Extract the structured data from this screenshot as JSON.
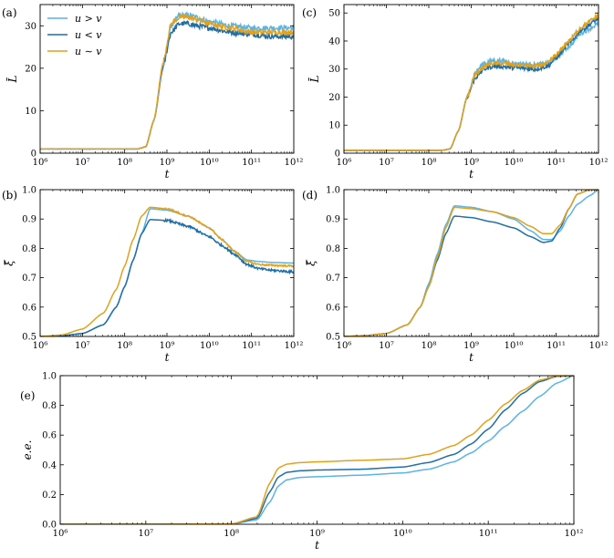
{
  "colors": {
    "u_gt_v": "#5ab4e6",
    "u_lt_v": "#1f6fa8",
    "u_sim_v": "#e3a11a"
  },
  "legend": [
    {
      "label": "u > v",
      "color_key": "u_gt_v"
    },
    {
      "label": "u < v",
      "color_key": "u_lt_v"
    },
    {
      "label": "u ∼ v",
      "color_key": "u_sim_v"
    }
  ],
  "chart_data": [
    {
      "id": "a",
      "panel_label": "(a)",
      "type": "line",
      "xlabel": "t",
      "ylabel": "L̄",
      "xscale": "log",
      "xlim": [
        6,
        12
      ],
      "ylim": [
        0,
        35
      ],
      "xticks": [
        {
          "v": 6,
          "label": "10⁶"
        },
        {
          "v": 7,
          "label": "10⁷"
        },
        {
          "v": 8,
          "label": "10⁸"
        },
        {
          "v": 9,
          "label": "10⁹"
        },
        {
          "v": 10,
          "label": "10¹⁰"
        },
        {
          "v": 11,
          "label": "10¹¹"
        },
        {
          "v": 12,
          "label": "10¹²"
        }
      ],
      "yticks": [
        {
          "v": 0,
          "label": "0"
        },
        {
          "v": 10,
          "label": "10"
        },
        {
          "v": 20,
          "label": "20"
        },
        {
          "v": 30,
          "label": "30"
        }
      ],
      "legend": true,
      "series": [
        {
          "name": "u > v",
          "color_key": "u_gt_v",
          "noise": 0.6,
          "x": [
            6,
            8.3,
            8.5,
            8.7,
            8.9,
            9.1,
            9.3,
            9.5,
            9.7,
            10,
            10.5,
            11,
            11.5,
            12
          ],
          "y": [
            1,
            1,
            1.5,
            8,
            20,
            30,
            32.5,
            32.5,
            32,
            31,
            30,
            29.5,
            29.5,
            29.5
          ]
        },
        {
          "name": "u < v",
          "color_key": "u_lt_v",
          "noise": 0.6,
          "x": [
            6,
            8.3,
            8.5,
            8.7,
            8.9,
            9.1,
            9.3,
            9.5,
            9.7,
            10,
            10.5,
            11,
            11.5,
            12
          ],
          "y": [
            1,
            1,
            1.5,
            8,
            20,
            28.5,
            30.5,
            30.5,
            30,
            29.5,
            28.5,
            28,
            27.5,
            27.5
          ]
        },
        {
          "name": "u ∼ v",
          "color_key": "u_sim_v",
          "noise": 0.6,
          "x": [
            6,
            8.3,
            8.5,
            8.7,
            8.9,
            9.1,
            9.3,
            9.5,
            9.7,
            10,
            10.5,
            11,
            11.5,
            12
          ],
          "y": [
            1,
            1,
            1.5,
            8,
            21,
            30.5,
            32,
            32,
            31.5,
            30.5,
            29.5,
            28.5,
            28.5,
            28.5
          ]
        }
      ]
    },
    {
      "id": "c",
      "panel_label": "(c)",
      "type": "line",
      "xlabel": "t",
      "ylabel": "L̄",
      "xscale": "log",
      "xlim": [
        6,
        12
      ],
      "ylim": [
        0,
        53
      ],
      "xticks": [
        {
          "v": 6,
          "label": "10⁶"
        },
        {
          "v": 7,
          "label": "10⁷"
        },
        {
          "v": 8,
          "label": "10⁸"
        },
        {
          "v": 9,
          "label": "10⁹"
        },
        {
          "v": 10,
          "label": "10¹⁰"
        },
        {
          "v": 11,
          "label": "10¹¹"
        },
        {
          "v": 12,
          "label": "10¹²"
        }
      ],
      "yticks": [
        {
          "v": 0,
          "label": "0"
        },
        {
          "v": 10,
          "label": "10"
        },
        {
          "v": 20,
          "label": "20"
        },
        {
          "v": 30,
          "label": "30"
        },
        {
          "v": 40,
          "label": "40"
        },
        {
          "v": 50,
          "label": "50"
        }
      ],
      "legend": false,
      "series": [
        {
          "name": "u > v",
          "color_key": "u_gt_v",
          "noise": 0.8,
          "x": [
            6,
            8.3,
            8.5,
            8.7,
            8.9,
            9.1,
            9.3,
            9.5,
            9.7,
            10,
            10.5,
            10.8,
            11,
            11.3,
            11.6,
            12
          ],
          "y": [
            1,
            1,
            1.5,
            8,
            20,
            29,
            32,
            33,
            33,
            32,
            31.5,
            32,
            34,
            38,
            43,
            46
          ]
        },
        {
          "name": "u < v",
          "color_key": "u_lt_v",
          "noise": 0.8,
          "x": [
            6,
            8.3,
            8.5,
            8.7,
            8.9,
            9.1,
            9.3,
            9.5,
            9.7,
            10,
            10.5,
            10.8,
            11,
            11.3,
            11.6,
            12
          ],
          "y": [
            1,
            1,
            1.5,
            8,
            20,
            27,
            30,
            31,
            31,
            30.5,
            30,
            31,
            34,
            39,
            44,
            48
          ]
        },
        {
          "name": "u ∼ v",
          "color_key": "u_sim_v",
          "noise": 0.8,
          "x": [
            6,
            8.3,
            8.5,
            8.7,
            8.9,
            9.1,
            9.3,
            9.5,
            9.7,
            10,
            10.5,
            10.8,
            11,
            11.3,
            11.6,
            12
          ],
          "y": [
            1,
            1,
            1.5,
            8,
            20,
            28,
            31,
            32,
            32,
            31.5,
            31,
            32,
            35,
            40,
            45,
            49
          ]
        }
      ]
    },
    {
      "id": "b",
      "panel_label": "(b)",
      "type": "line",
      "xlabel": "t",
      "ylabel": "ξ̄",
      "xscale": "log",
      "xlim": [
        6,
        12
      ],
      "ylim": [
        0.5,
        1.0
      ],
      "xticks": [
        {
          "v": 6,
          "label": "10⁶"
        },
        {
          "v": 7,
          "label": "10⁷"
        },
        {
          "v": 8,
          "label": "10⁸"
        },
        {
          "v": 9,
          "label": "10⁹"
        },
        {
          "v": 10,
          "label": "10¹⁰"
        },
        {
          "v": 11,
          "label": "10¹¹"
        },
        {
          "v": 12,
          "label": "10¹²"
        }
      ],
      "yticks": [
        {
          "v": 0.5,
          "label": "0.5"
        },
        {
          "v": 0.6,
          "label": "0.6"
        },
        {
          "v": 0.7,
          "label": "0.7"
        },
        {
          "v": 0.8,
          "label": "0.8"
        },
        {
          "v": 0.9,
          "label": "0.9"
        },
        {
          "v": 1.0,
          "label": "1.0"
        }
      ],
      "legend": false,
      "series": [
        {
          "name": "u > v",
          "color_key": "u_gt_v",
          "noise": 0.0,
          "x": [
            6,
            6.5,
            7,
            7.5,
            7.8,
            8,
            8.2,
            8.4,
            8.6,
            9,
            9.5,
            10,
            10.3,
            10.6,
            10.9,
            11.2,
            11.5,
            12
          ],
          "y": [
            0.5,
            0.502,
            0.51,
            0.54,
            0.6,
            0.67,
            0.76,
            0.85,
            0.935,
            0.93,
            0.91,
            0.87,
            0.83,
            0.79,
            0.76,
            0.755,
            0.752,
            0.75
          ]
        },
        {
          "name": "u < v",
          "color_key": "u_lt_v",
          "noise": 0.004,
          "x": [
            6,
            6.5,
            7,
            7.5,
            7.8,
            8,
            8.2,
            8.4,
            8.6,
            9,
            9.5,
            10,
            10.3,
            10.6,
            10.9,
            11.2,
            11.5,
            12
          ],
          "y": [
            0.5,
            0.502,
            0.51,
            0.54,
            0.6,
            0.67,
            0.76,
            0.85,
            0.898,
            0.895,
            0.875,
            0.84,
            0.81,
            0.78,
            0.745,
            0.73,
            0.725,
            0.72
          ]
        },
        {
          "name": "u ∼ v",
          "color_key": "u_sim_v",
          "noise": 0.003,
          "x": [
            6,
            6.5,
            7,
            7.5,
            7.8,
            8,
            8.2,
            8.4,
            8.6,
            9,
            9.5,
            10,
            10.3,
            10.6,
            10.9,
            11.2,
            11.5,
            12
          ],
          "y": [
            0.5,
            0.505,
            0.525,
            0.58,
            0.66,
            0.74,
            0.83,
            0.91,
            0.94,
            0.935,
            0.91,
            0.87,
            0.83,
            0.79,
            0.755,
            0.745,
            0.742,
            0.74
          ]
        }
      ]
    },
    {
      "id": "d",
      "panel_label": "(d)",
      "type": "line",
      "xlabel": "t",
      "ylabel": "ξ̄",
      "xscale": "log",
      "xlim": [
        6,
        12
      ],
      "ylim": [
        0.5,
        1.0
      ],
      "xticks": [
        {
          "v": 6,
          "label": "10⁶"
        },
        {
          "v": 7,
          "label": "10⁷"
        },
        {
          "v": 8,
          "label": "10⁸"
        },
        {
          "v": 9,
          "label": "10⁹"
        },
        {
          "v": 10,
          "label": "10¹⁰"
        },
        {
          "v": 11,
          "label": "10¹¹"
        },
        {
          "v": 12,
          "label": "10¹²"
        }
      ],
      "yticks": [
        {
          "v": 0.5,
          "label": "0.5"
        },
        {
          "v": 0.6,
          "label": "0.6"
        },
        {
          "v": 0.7,
          "label": "0.7"
        },
        {
          "v": 0.8,
          "label": "0.8"
        },
        {
          "v": 0.9,
          "label": "0.9"
        },
        {
          "v": 1.0,
          "label": "1.0"
        }
      ],
      "legend": false,
      "series": [
        {
          "name": "u > v",
          "color_key": "u_gt_v",
          "noise": 0.0,
          "x": [
            6,
            6.5,
            7,
            7.5,
            7.8,
            8,
            8.2,
            8.4,
            8.6,
            9,
            9.5,
            10,
            10.4,
            10.7,
            10.9,
            11.1,
            11.3,
            11.5,
            11.8,
            12
          ],
          "y": [
            0.5,
            0.503,
            0.51,
            0.54,
            0.6,
            0.68,
            0.78,
            0.88,
            0.945,
            0.94,
            0.925,
            0.9,
            0.86,
            0.83,
            0.83,
            0.86,
            0.91,
            0.95,
            0.98,
            1.0
          ]
        },
        {
          "name": "u < v",
          "color_key": "u_lt_v",
          "noise": 0.0,
          "x": [
            6,
            6.5,
            7,
            7.5,
            7.8,
            8,
            8.2,
            8.4,
            8.6,
            9,
            9.5,
            10,
            10.4,
            10.7,
            10.9,
            11.1,
            11.3,
            11.5,
            11.8,
            12
          ],
          "y": [
            0.5,
            0.503,
            0.51,
            0.54,
            0.6,
            0.67,
            0.76,
            0.85,
            0.91,
            0.905,
            0.89,
            0.87,
            0.84,
            0.82,
            0.825,
            0.87,
            0.935,
            0.985,
            1.0,
            1.0
          ]
        },
        {
          "name": "u ∼ v",
          "color_key": "u_sim_v",
          "noise": 0.0,
          "x": [
            6,
            6.5,
            7,
            7.5,
            7.8,
            8,
            8.2,
            8.4,
            8.6,
            9,
            9.5,
            10,
            10.4,
            10.7,
            10.9,
            11.1,
            11.3,
            11.5,
            11.8,
            12
          ],
          "y": [
            0.5,
            0.503,
            0.51,
            0.54,
            0.6,
            0.67,
            0.77,
            0.87,
            0.94,
            0.935,
            0.925,
            0.905,
            0.875,
            0.85,
            0.85,
            0.88,
            0.935,
            0.985,
            1.0,
            1.0
          ]
        }
      ]
    },
    {
      "id": "e",
      "panel_label": "(e)",
      "type": "line",
      "xlabel": "t",
      "ylabel": "e.e.",
      "xscale": "log",
      "xlim": [
        6,
        12
      ],
      "ylim": [
        0.0,
        1.0
      ],
      "xticks": [
        {
          "v": 6,
          "label": "10⁶"
        },
        {
          "v": 7,
          "label": "10⁷"
        },
        {
          "v": 8,
          "label": "10⁸"
        },
        {
          "v": 9,
          "label": "10⁹"
        },
        {
          "v": 10,
          "label": "10¹⁰"
        },
        {
          "v": 11,
          "label": "10¹¹"
        },
        {
          "v": 12,
          "label": "10¹²"
        }
      ],
      "yticks": [
        {
          "v": 0.0,
          "label": "0.0"
        },
        {
          "v": 0.2,
          "label": "0.2"
        },
        {
          "v": 0.4,
          "label": "0.4"
        },
        {
          "v": 0.6,
          "label": "0.6"
        },
        {
          "v": 0.8,
          "label": "0.8"
        },
        {
          "v": 1.0,
          "label": "1.0"
        }
      ],
      "legend": false,
      "series": [
        {
          "name": "u > v",
          "color_key": "u_gt_v",
          "noise": 0.0,
          "x": [
            6,
            7,
            8,
            8.3,
            8.45,
            8.55,
            8.65,
            8.8,
            9,
            9.5,
            10,
            10.3,
            10.6,
            10.8,
            11,
            11.2,
            11.4,
            11.6,
            11.8,
            12
          ],
          "y": [
            0,
            0,
            0.002,
            0.03,
            0.15,
            0.26,
            0.3,
            0.315,
            0.32,
            0.33,
            0.345,
            0.37,
            0.42,
            0.48,
            0.56,
            0.66,
            0.76,
            0.86,
            0.95,
            1.0
          ]
        },
        {
          "name": "u < v",
          "color_key": "u_lt_v",
          "noise": 0.0,
          "x": [
            6,
            7,
            8,
            8.3,
            8.45,
            8.55,
            8.65,
            8.8,
            9,
            9.5,
            10,
            10.3,
            10.6,
            10.8,
            11,
            11.2,
            11.4,
            11.6,
            11.8,
            12
          ],
          "y": [
            0,
            0,
            0.002,
            0.04,
            0.22,
            0.32,
            0.35,
            0.36,
            0.365,
            0.37,
            0.385,
            0.415,
            0.47,
            0.54,
            0.64,
            0.77,
            0.88,
            0.96,
            0.995,
            1.0
          ]
        },
        {
          "name": "u ∼ v",
          "color_key": "u_sim_v",
          "noise": 0.0,
          "x": [
            6,
            7,
            8,
            8.3,
            8.45,
            8.55,
            8.65,
            8.8,
            9,
            9.5,
            10,
            10.3,
            10.6,
            10.8,
            11,
            11.2,
            11.4,
            11.6,
            11.8,
            12
          ],
          "y": [
            0,
            0,
            0.002,
            0.05,
            0.28,
            0.38,
            0.405,
            0.415,
            0.42,
            0.43,
            0.44,
            0.47,
            0.53,
            0.6,
            0.7,
            0.81,
            0.9,
            0.97,
            0.998,
            1.0
          ]
        }
      ]
    }
  ]
}
